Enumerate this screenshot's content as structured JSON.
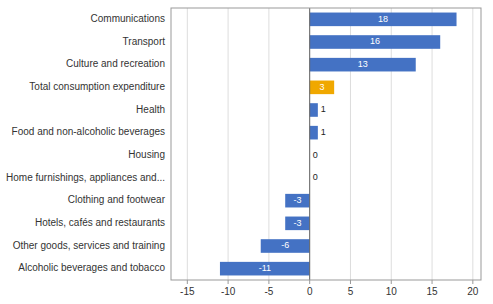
{
  "chart_data": {
    "type": "bar",
    "orientation": "horizontal",
    "categories": [
      "Alcoholic beverages and tobacco",
      "Other goods, services and training",
      "Hotels, cafés and restaurants",
      "Clothing and footwear",
      "Home furnishings, appliances and...",
      "Housing",
      "Food and non-alcoholic beverages",
      "Health",
      "Total consumption  expenditure",
      "Culture and recreation",
      "Transport",
      "Communications"
    ],
    "values": [
      -11,
      -6,
      -3,
      -3,
      0,
      0,
      1,
      1,
      3,
      13,
      16,
      18
    ],
    "colors": [
      "#4472c4",
      "#4472c4",
      "#4472c4",
      "#4472c4",
      "#4472c4",
      "#4472c4",
      "#4472c4",
      "#4472c4",
      "#f0a800",
      "#4472c4",
      "#4472c4",
      "#4472c4"
    ],
    "xlim": [
      -17,
      21
    ],
    "xticks": [
      -15,
      -10,
      -5,
      0,
      5,
      10,
      15,
      20
    ],
    "grid": true,
    "data_labels": true
  }
}
